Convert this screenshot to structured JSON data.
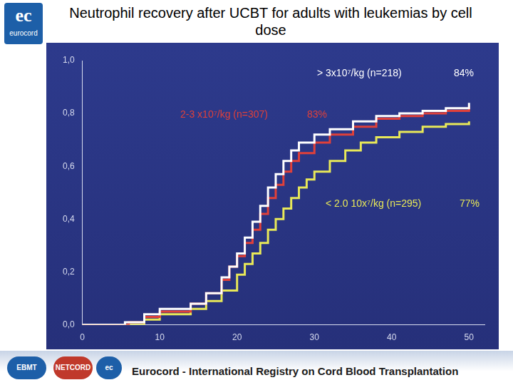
{
  "chart_data": {
    "type": "line",
    "title": "Neutrophil recovery after UCBT for adults with leukemias by cell dose",
    "header_logo": {
      "mark": "ec",
      "text": "eurocord"
    },
    "footer": "Eurocord - International Registry on Cord Blood Transplantation",
    "footer_logos": [
      "EBMT",
      "NETCORD",
      "ec"
    ],
    "xlim": [
      0,
      52
    ],
    "xticks": [
      0,
      10,
      20,
      30,
      40,
      50
    ],
    "ylim": [
      0,
      1
    ],
    "yticks": [
      {
        "value": 0,
        "label": "0,0"
      },
      {
        "value": 0.2,
        "label": "0,2"
      },
      {
        "value": 0.4,
        "label": "0,4"
      },
      {
        "value": 0.6,
        "label": "0,6"
      },
      {
        "value": 0.8,
        "label": "0,8"
      },
      {
        "value": 1,
        "label": "1,0"
      }
    ],
    "grid": false,
    "line_style": "step",
    "series": [
      {
        "name": "> 3x10⁷/kg (n=218)",
        "note": "84%",
        "color": "#ffffff",
        "x": [
          0,
          2.5,
          5.5,
          8,
          10,
          14,
          16,
          18,
          19,
          20,
          21,
          22,
          23,
          24,
          25,
          26,
          27,
          28,
          30,
          32,
          35,
          38,
          41,
          44,
          47,
          50
        ],
        "values": [
          0,
          0,
          0.01,
          0.04,
          0.06,
          0.08,
          0.12,
          0.18,
          0.22,
          0.27,
          0.33,
          0.39,
          0.45,
          0.52,
          0.57,
          0.62,
          0.66,
          0.69,
          0.72,
          0.74,
          0.77,
          0.79,
          0.8,
          0.81,
          0.82,
          0.84
        ]
      },
      {
        "name": "2-3 x10⁷/kg (n=307)",
        "note": "83%",
        "color": "#e0403a",
        "x": [
          0,
          5,
          6,
          8,
          10,
          14,
          16,
          18,
          19,
          20,
          21,
          22,
          23,
          24,
          25,
          26,
          27,
          28,
          30,
          32,
          35,
          38,
          41,
          44,
          47,
          50
        ],
        "values": [
          0,
          0,
          0.01,
          0.03,
          0.05,
          0.08,
          0.12,
          0.17,
          0.22,
          0.26,
          0.31,
          0.36,
          0.42,
          0.48,
          0.53,
          0.58,
          0.62,
          0.65,
          0.69,
          0.72,
          0.75,
          0.78,
          0.79,
          0.8,
          0.81,
          0.83
        ]
      },
      {
        "name": "< 2.0 10x⁷/kg (n=295)",
        "note": "77%",
        "color": "#e8e858",
        "x": [
          0,
          6,
          8,
          10,
          14,
          16,
          18,
          20,
          21,
          22,
          23,
          24,
          25,
          26,
          27,
          28,
          29,
          30,
          32,
          34,
          36,
          38,
          41,
          44,
          47,
          50
        ],
        "values": [
          0,
          0,
          0.02,
          0.04,
          0.06,
          0.09,
          0.13,
          0.19,
          0.23,
          0.27,
          0.31,
          0.36,
          0.4,
          0.44,
          0.48,
          0.52,
          0.55,
          0.58,
          0.62,
          0.66,
          0.69,
          0.71,
          0.73,
          0.75,
          0.76,
          0.77
        ]
      }
    ]
  }
}
